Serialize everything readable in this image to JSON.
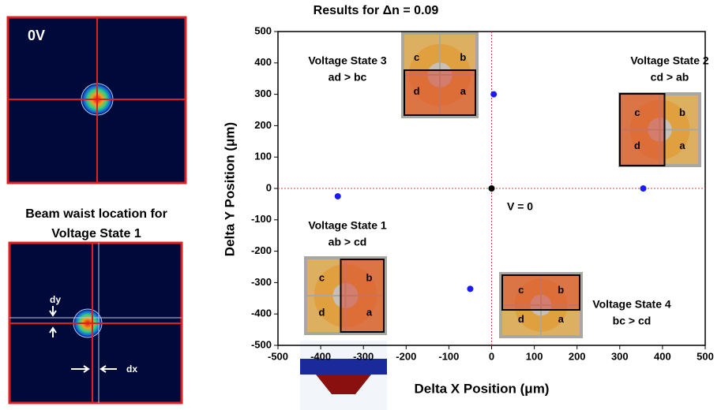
{
  "chart_data": {
    "type": "scatter",
    "title": "Results for Δn = 0.09",
    "x_label": "Delta X Position (μm)",
    "y_label": "Delta Y Position (μm)",
    "x": [
      -360,
      -50,
      5,
      355,
      0
    ],
    "y": [
      -25,
      -320,
      300,
      0,
      0
    ],
    "colors": [
      "#1c1cf0",
      "#1c1cf0",
      "#1c1cf0",
      "#1c1cf0",
      "#000000"
    ],
    "xlim": [
      -500,
      500
    ],
    "xticks": [
      -500,
      -400,
      -300,
      -200,
      -100,
      0,
      100,
      200,
      300,
      400,
      500
    ],
    "ylim": [
      -500,
      500
    ],
    "yticks": [
      -500,
      -400,
      -300,
      -200,
      -100,
      0,
      100,
      200,
      300,
      400,
      500
    ],
    "zero_lines": true,
    "zero_line_color": "#d04040",
    "annotations": [
      {
        "text": "Voltage State 3",
        "subtext": "ad > bc"
      },
      {
        "text": "Voltage State 2",
        "subtext": "cd > ab"
      },
      {
        "text": "Voltage State 1",
        "subtext": "ab > cd"
      },
      {
        "text": "Voltage State 4",
        "subtext": "bc > cd"
      },
      {
        "text": "V = 0"
      }
    ]
  },
  "insets": [
    {
      "letters": [
        "c",
        "b",
        "d",
        "a"
      ]
    },
    {
      "letters": [
        "c",
        "b",
        "d",
        "a"
      ]
    },
    {
      "letters": [
        "c",
        "b",
        "d",
        "a"
      ]
    },
    {
      "letters": [
        "c",
        "b",
        "d",
        "a"
      ]
    }
  ],
  "left_panel": {
    "top_label": "0V",
    "caption": [
      "Beam waist location for",
      "Voltage State 1"
    ],
    "dy_label": "dy",
    "dx_label": "dx"
  }
}
